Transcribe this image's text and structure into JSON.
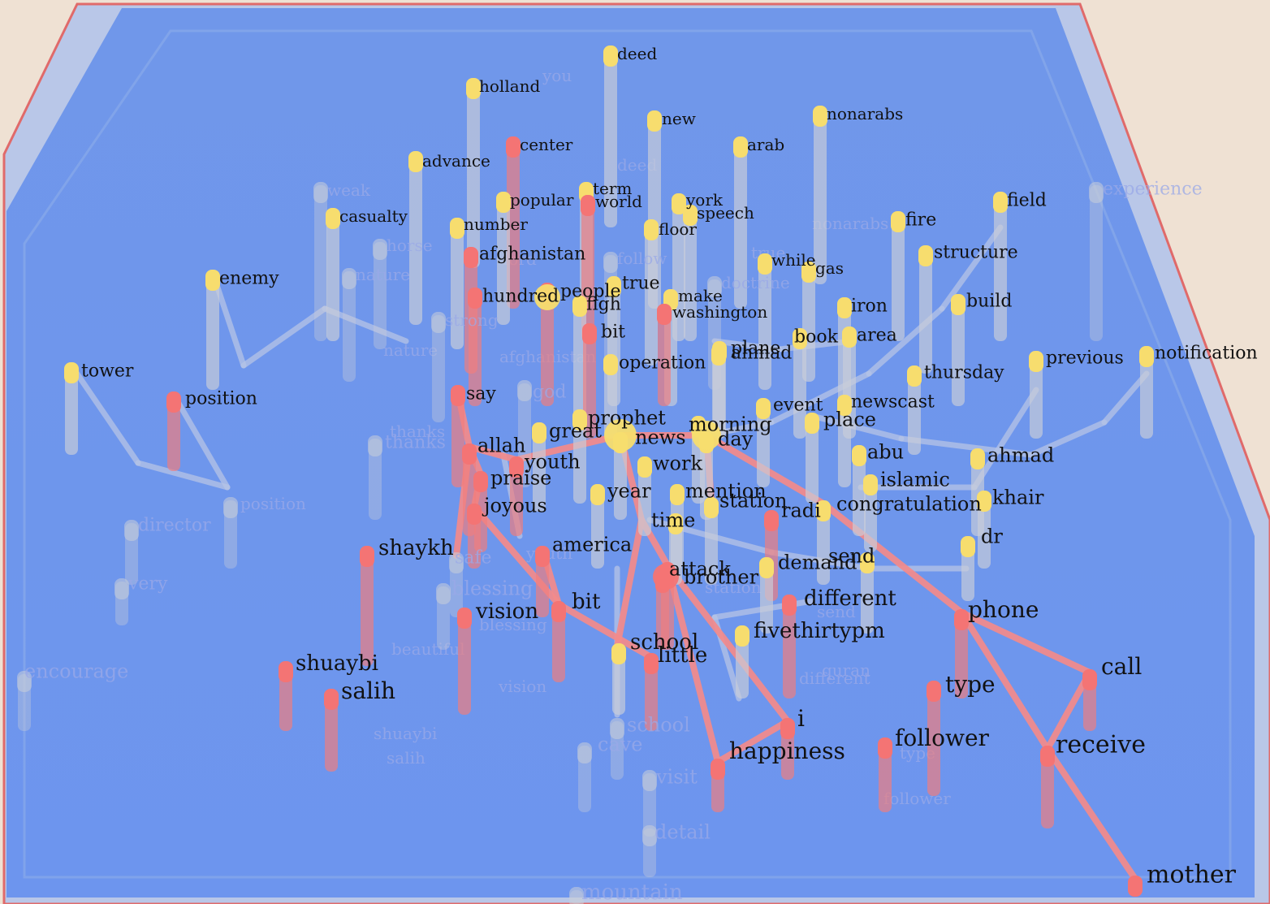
{
  "colors": {
    "background": "#efe1d3",
    "floor": "#7199ee",
    "floor_border": "#a8bde8",
    "frame_edge": "#e06a6a",
    "pole": "#c9cdd8",
    "pole_red": "#f07d7d",
    "cap_yellow": "#f7dd6e",
    "cap_red": "#f47474",
    "edge_highlight": "#f48b8b",
    "edge_normal": "#b6c4e6"
  },
  "labels": [
    {
      "text": "deed",
      "kind": "yellow",
      "size": 20
    },
    {
      "text": "holland",
      "kind": "yellow",
      "size": 20
    },
    {
      "text": "new",
      "kind": "yellow",
      "size": 20
    },
    {
      "text": "nonarabs",
      "kind": "yellow",
      "size": 20
    },
    {
      "text": "center",
      "kind": "red",
      "size": 20
    },
    {
      "text": "arab",
      "kind": "yellow",
      "size": 20
    },
    {
      "text": "advance",
      "kind": "yellow",
      "size": 20
    },
    {
      "text": "weak",
      "kind": "faint",
      "size": 20
    },
    {
      "text": "term",
      "kind": "yellow",
      "size": 20
    },
    {
      "text": "world",
      "kind": "red",
      "size": 20
    },
    {
      "text": "popular",
      "kind": "yellow",
      "size": 20
    },
    {
      "text": "york",
      "kind": "yellow",
      "size": 20
    },
    {
      "text": "speech",
      "kind": "yellow",
      "size": 20
    },
    {
      "text": "experience",
      "kind": "faint",
      "size": 22
    },
    {
      "text": "field",
      "kind": "yellow",
      "size": 22
    },
    {
      "text": "casualty",
      "kind": "yellow",
      "size": 20
    },
    {
      "text": "number",
      "kind": "yellow",
      "size": 20
    },
    {
      "text": "floor",
      "kind": "yellow",
      "size": 20
    },
    {
      "text": "fire",
      "kind": "yellow",
      "size": 22
    },
    {
      "text": "horse",
      "kind": "faint",
      "size": 20
    },
    {
      "text": "afghanistan",
      "kind": "red",
      "size": 22
    },
    {
      "text": "follow",
      "kind": "faint",
      "size": 20
    },
    {
      "text": "structure",
      "kind": "yellow",
      "size": 22
    },
    {
      "text": "while",
      "kind": "yellow",
      "size": 20
    },
    {
      "text": "gas",
      "kind": "yellow",
      "size": 20
    },
    {
      "text": "enemy",
      "kind": "yellow",
      "size": 22
    },
    {
      "text": "nature",
      "kind": "faint",
      "size": 20
    },
    {
      "text": "doctrine",
      "kind": "faint",
      "size": 20
    },
    {
      "text": "hundred",
      "kind": "red",
      "size": 22
    },
    {
      "text": "people",
      "kind": "red",
      "size": 22
    },
    {
      "text": "true",
      "kind": "yellow",
      "size": 22
    },
    {
      "text": "make",
      "kind": "yellow",
      "size": 20
    },
    {
      "text": "build",
      "kind": "yellow",
      "size": 22
    },
    {
      "text": "figh",
      "kind": "yellow",
      "size": 22
    },
    {
      "text": "washington",
      "kind": "red",
      "size": 20
    },
    {
      "text": "iron",
      "kind": "yellow",
      "size": 22
    },
    {
      "text": "strong",
      "kind": "faint",
      "size": 20
    },
    {
      "text": "bit",
      "kind": "red",
      "size": 22
    },
    {
      "text": "book",
      "kind": "yellow",
      "size": 22
    },
    {
      "text": "area",
      "kind": "yellow",
      "size": 22
    },
    {
      "text": "plane",
      "kind": "yellow",
      "size": 22
    },
    {
      "text": "ahmad",
      "kind": "yellow",
      "size": 22
    },
    {
      "text": "previous",
      "kind": "yellow",
      "size": 22
    },
    {
      "text": "notification",
      "kind": "yellow",
      "size": 22
    },
    {
      "text": "tower",
      "kind": "yellow",
      "size": 22
    },
    {
      "text": "operation",
      "kind": "yellow",
      "size": 22
    },
    {
      "text": "thursday",
      "kind": "yellow",
      "size": 22
    },
    {
      "text": "position",
      "kind": "red",
      "size": 22
    },
    {
      "text": "say",
      "kind": "red",
      "size": 22
    },
    {
      "text": "god",
      "kind": "faint",
      "size": 22
    },
    {
      "text": "newscast",
      "kind": "yellow",
      "size": 22
    },
    {
      "text": "event",
      "kind": "yellow",
      "size": 22
    },
    {
      "text": "prophet",
      "kind": "yellow",
      "size": 24
    },
    {
      "text": "morning",
      "kind": "yellow",
      "size": 24
    },
    {
      "text": "place",
      "kind": "yellow",
      "size": 24
    },
    {
      "text": "great",
      "kind": "yellow",
      "size": 24
    },
    {
      "text": "news",
      "kind": "yellow",
      "size": 24
    },
    {
      "text": "day",
      "kind": "yellow",
      "size": 24
    },
    {
      "text": "thanks",
      "kind": "faint",
      "size": 22
    },
    {
      "text": "allah",
      "kind": "red",
      "size": 24
    },
    {
      "text": "youth",
      "kind": "red",
      "size": 24
    },
    {
      "text": "work",
      "kind": "yellow",
      "size": 24
    },
    {
      "text": "abu",
      "kind": "yellow",
      "size": 24
    },
    {
      "text": "ahmad",
      "kind": "yellow",
      "size": 24
    },
    {
      "text": "praise",
      "kind": "red",
      "size": 24
    },
    {
      "text": "islamic",
      "kind": "yellow",
      "size": 24
    },
    {
      "text": "year",
      "kind": "yellow",
      "size": 24
    },
    {
      "text": "mention",
      "kind": "yellow",
      "size": 24
    },
    {
      "text": "khair",
      "kind": "yellow",
      "size": 24
    },
    {
      "text": "joyous",
      "kind": "red",
      "size": 24
    },
    {
      "text": "station",
      "kind": "yellow",
      "size": 24
    },
    {
      "text": "congratulation",
      "kind": "yellow",
      "size": 24
    },
    {
      "text": "time",
      "kind": "yellow",
      "size": 24
    },
    {
      "text": "radi",
      "kind": "red",
      "size": 24
    },
    {
      "text": "dr",
      "kind": "yellow",
      "size": 24
    },
    {
      "text": "director",
      "kind": "faint",
      "size": 22
    },
    {
      "text": "position",
      "kind": "faint",
      "size": 20
    },
    {
      "text": "america",
      "kind": "red",
      "size": 24
    },
    {
      "text": "shaykh",
      "kind": "red",
      "size": 26
    },
    {
      "text": "safe",
      "kind": "faint",
      "size": 22
    },
    {
      "text": "demand",
      "kind": "yellow",
      "size": 24
    },
    {
      "text": "send",
      "kind": "yellow",
      "size": 24
    },
    {
      "text": "attack",
      "kind": "red",
      "size": 24
    },
    {
      "text": "brother",
      "kind": "red",
      "size": 24
    },
    {
      "text": "very",
      "kind": "faint",
      "size": 22
    },
    {
      "text": "blessing",
      "kind": "faint",
      "size": 24
    },
    {
      "text": "bit",
      "kind": "red",
      "size": 26
    },
    {
      "text": "different",
      "kind": "red",
      "size": 26
    },
    {
      "text": "vision",
      "kind": "red",
      "size": 26
    },
    {
      "text": "phone",
      "kind": "red",
      "size": 28
    },
    {
      "text": "fivethirtypm",
      "kind": "yellow",
      "size": 26
    },
    {
      "text": "school",
      "kind": "yellow",
      "size": 26
    },
    {
      "text": "little",
      "kind": "red",
      "size": 26
    },
    {
      "text": "shuaybi",
      "kind": "red",
      "size": 26
    },
    {
      "text": "call",
      "kind": "red",
      "size": 28
    },
    {
      "text": "encourage",
      "kind": "faint",
      "size": 24
    },
    {
      "text": "salih",
      "kind": "red",
      "size": 28
    },
    {
      "text": "type",
      "kind": "red",
      "size": 28
    },
    {
      "text": "i",
      "kind": "red",
      "size": 28
    },
    {
      "text": "follower",
      "kind": "red",
      "size": 28
    },
    {
      "text": "receive",
      "kind": "red",
      "size": 30
    },
    {
      "text": "cave",
      "kind": "faint",
      "size": 24
    },
    {
      "text": "happiness",
      "kind": "red",
      "size": 28
    },
    {
      "text": "school",
      "kind": "faint",
      "size": 24
    },
    {
      "text": "visit",
      "kind": "faint",
      "size": 24
    },
    {
      "text": "detail",
      "kind": "faint",
      "size": 24
    },
    {
      "text": "mother",
      "kind": "red",
      "size": 30
    },
    {
      "text": "mountain",
      "kind": "faint",
      "size": 26
    }
  ],
  "ghost_labels": [
    "you",
    "deed",
    "nonarabs",
    "true",
    "lord",
    "nature",
    "afghanistan",
    "thanks",
    "salih",
    "shuaybi",
    "vision",
    "youth",
    "station",
    "send",
    "quran",
    "different",
    "type",
    "follower",
    "blessing",
    "beautiful"
  ]
}
